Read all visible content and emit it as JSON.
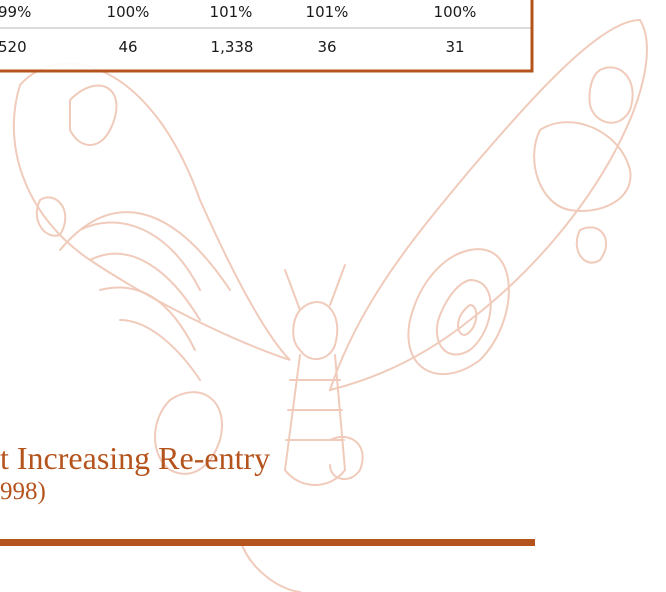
{
  "table": {
    "rows": [
      [
        "99%",
        "100%",
        "101%",
        "101%",
        "100%"
      ],
      [
        "520",
        "46",
        "1,338",
        "36",
        "31"
      ]
    ]
  },
  "heading": {
    "title": "t Increasing Re-entry",
    "subtitle": "998)"
  }
}
